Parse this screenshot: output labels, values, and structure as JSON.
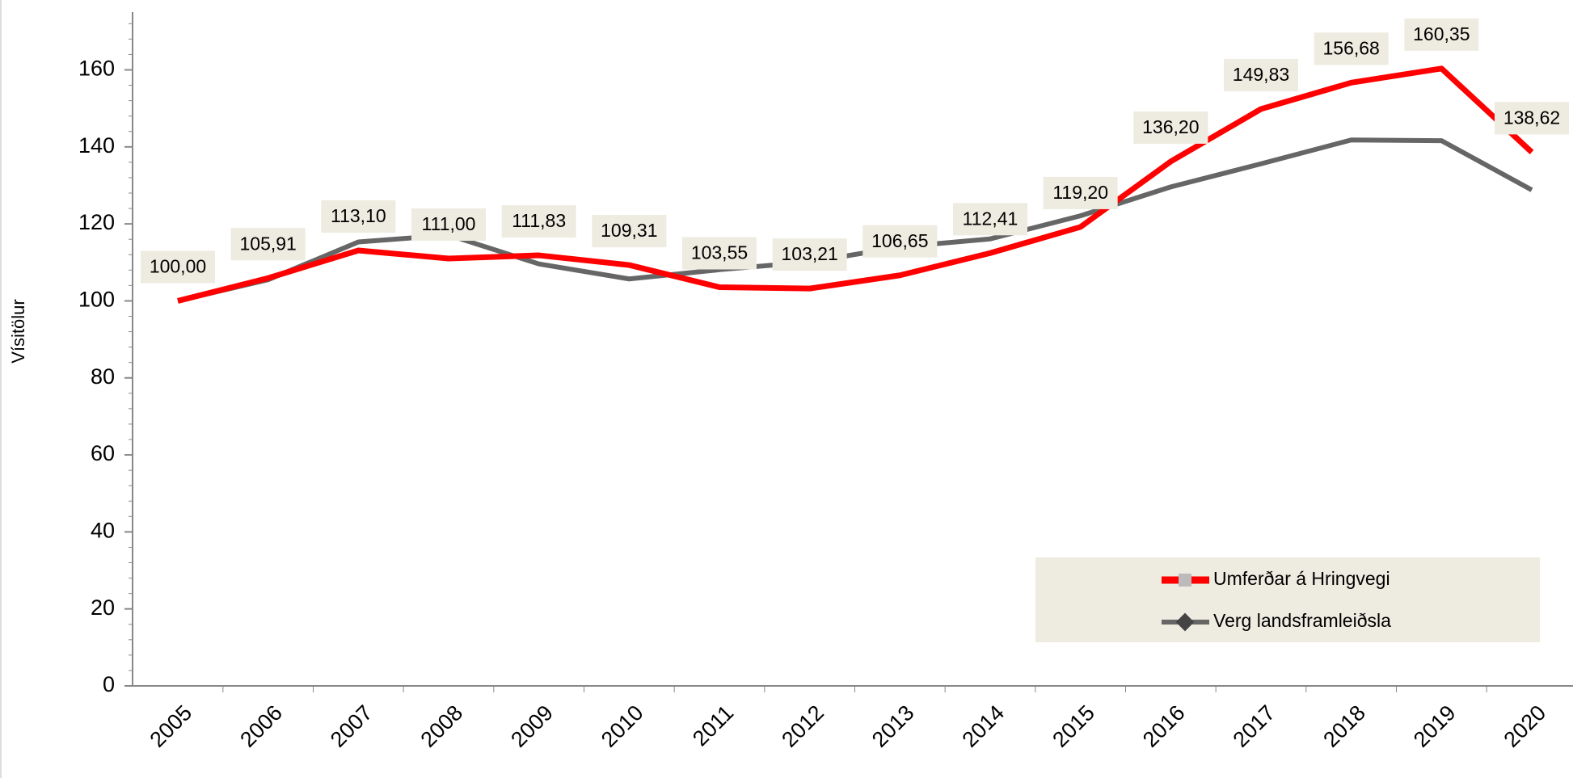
{
  "chart_data": {
    "type": "line",
    "y_label": "Vísitölur",
    "categories": [
      "2005",
      "2006",
      "2007",
      "2008",
      "2009",
      "2010",
      "2011",
      "2012",
      "2013",
      "2014",
      "2015",
      "2016",
      "2017",
      "2018",
      "2019",
      "2020"
    ],
    "series": [
      {
        "name": "Umferðar á Hringvegi",
        "color": "#ff0000",
        "values": [
          100.0,
          105.91,
          113.1,
          111.0,
          111.83,
          109.31,
          103.55,
          103.21,
          106.65,
          112.41,
          119.2,
          136.2,
          149.83,
          156.68,
          160.35,
          138.62
        ],
        "value_labels": [
          "100,00",
          "105,91",
          "113,10",
          "111,00",
          "111,83",
          "109,31",
          "103,55",
          "103,21",
          "106,65",
          "112,41",
          "119,20",
          "136,20",
          "149,83",
          "156,68",
          "160,35",
          "138,62"
        ]
      },
      {
        "name": "Verg landsframleiðsla",
        "color": "#666666",
        "values": [
          100,
          105.5,
          115.3,
          117.1,
          109.6,
          105.7,
          108.1,
          110.1,
          114.0,
          116.1,
          122.1,
          129.6,
          135.6,
          141.8,
          141.6,
          128.8
        ]
      }
    ],
    "ylim": [
      0,
      175
    ],
    "yticks": [
      0,
      20,
      40,
      60,
      80,
      100,
      120,
      140,
      160
    ],
    "legend": "bottom-right",
    "label_background": "#eeebe0"
  }
}
